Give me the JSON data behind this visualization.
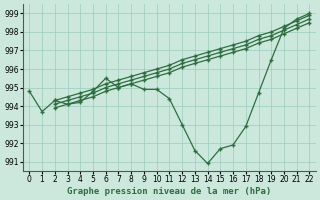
{
  "xlabel": "Graphe pression niveau de la mer (hPa)",
  "ylabel": "",
  "background_color": "#cce8dd",
  "grid_color": "#99ccbb",
  "line_color": "#2d6e3e",
  "xlim": [
    -0.5,
    22.5
  ],
  "ylim": [
    990.5,
    999.5
  ],
  "yticks": [
    991,
    992,
    993,
    994,
    995,
    996,
    997,
    998,
    999
  ],
  "xticks": [
    0,
    1,
    2,
    3,
    4,
    5,
    6,
    7,
    8,
    9,
    10,
    11,
    12,
    13,
    14,
    15,
    16,
    17,
    18,
    19,
    20,
    21,
    22
  ],
  "series": [
    {
      "x": [
        0,
        1,
        2,
        3,
        4,
        5,
        6,
        7,
        8,
        9,
        10,
        11,
        12,
        13,
        14,
        15,
        16,
        17,
        18,
        19,
        20,
        21,
        22
      ],
      "y": [
        994.8,
        993.7,
        994.3,
        994.1,
        994.2,
        994.8,
        995.5,
        995.0,
        995.2,
        994.9,
        994.9,
        994.4,
        993.0,
        991.6,
        990.9,
        991.7,
        991.9,
        992.9,
        994.7,
        996.5,
        998.2,
        998.7,
        999.0
      ]
    },
    {
      "x": [
        2,
        3,
        4,
        5,
        6,
        7,
        8,
        9,
        10,
        11,
        12,
        13,
        14,
        15,
        16,
        17,
        18,
        19,
        20,
        21,
        22
      ],
      "y": [
        994.3,
        994.5,
        994.7,
        994.9,
        995.2,
        995.4,
        995.6,
        995.8,
        996.0,
        996.2,
        996.5,
        996.7,
        996.9,
        997.1,
        997.3,
        997.5,
        997.8,
        998.0,
        998.3,
        998.6,
        998.9
      ]
    },
    {
      "x": [
        2,
        3,
        4,
        5,
        6,
        7,
        8,
        9,
        10,
        11,
        12,
        13,
        14,
        15,
        16,
        17,
        18,
        19,
        20,
        21,
        22
      ],
      "y": [
        994.1,
        994.3,
        994.5,
        994.7,
        995.0,
        995.2,
        995.4,
        995.6,
        995.8,
        996.0,
        996.3,
        996.5,
        996.7,
        996.9,
        997.1,
        997.3,
        997.6,
        997.8,
        998.1,
        998.4,
        998.7
      ]
    },
    {
      "x": [
        2,
        3,
        4,
        5,
        6,
        7,
        8,
        9,
        10,
        11,
        12,
        13,
        14,
        15,
        16,
        17,
        18,
        19,
        20,
        21,
        22
      ],
      "y": [
        993.9,
        994.1,
        994.3,
        994.5,
        994.8,
        995.0,
        995.2,
        995.4,
        995.6,
        995.8,
        996.1,
        996.3,
        996.5,
        996.7,
        996.9,
        997.1,
        997.4,
        997.6,
        997.9,
        998.2,
        998.5
      ]
    }
  ]
}
